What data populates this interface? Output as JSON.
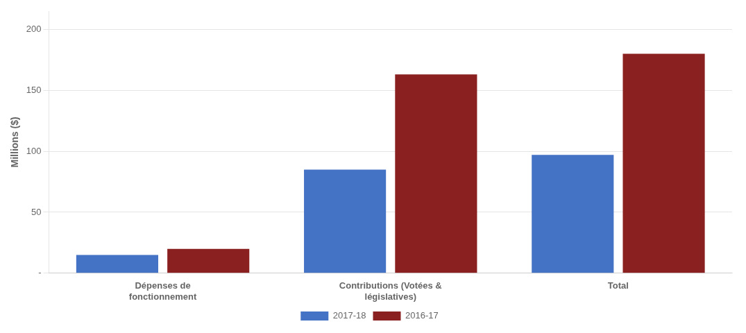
{
  "chart_data": {
    "type": "bar",
    "categories": [
      "Dépenses de\nfonctionnement",
      "Contributions (Votées &\nlégislatives)",
      "Total"
    ],
    "series": [
      {
        "name": "2017-18",
        "color": "#4472C4",
        "values": [
          15,
          85,
          97
        ]
      },
      {
        "name": "2016-17",
        "color": "#8B2020",
        "values": [
          20,
          163,
          180
        ]
      }
    ],
    "ylabel": "Millions ($)",
    "ylim": [
      0,
      215
    ],
    "yticks": [
      {
        "value": 0,
        "label": "-"
      },
      50,
      100,
      150,
      200
    ],
    "grid": "y",
    "legend": "bottom"
  }
}
